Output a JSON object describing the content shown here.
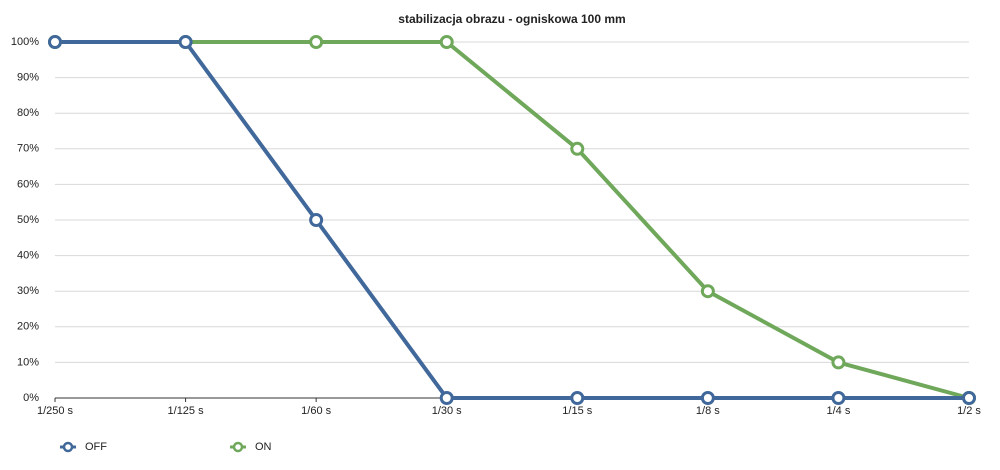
{
  "chart_data": {
    "type": "line",
    "title": "stabilizacja obrazu - ogniskowa 100 mm",
    "categories": [
      "1/250 s",
      "1/125 s",
      "1/60 s",
      "1/30 s",
      "1/15 s",
      "1/8 s",
      "1/4 s",
      "1/2 s"
    ],
    "series": [
      {
        "name": "ON",
        "color": "#6fa85a",
        "values": [
          100,
          100,
          100,
          100,
          70,
          30,
          10,
          0
        ]
      },
      {
        "name": "OFF",
        "color": "#41689a",
        "values": [
          100,
          100,
          50,
          0,
          0,
          0,
          0,
          0
        ]
      }
    ],
    "ylim": [
      0,
      100
    ],
    "yticks": [
      {
        "value": 0,
        "label": "0%"
      },
      {
        "value": 10,
        "label": "10%"
      },
      {
        "value": 20,
        "label": "20%"
      },
      {
        "value": 30,
        "label": "30%"
      },
      {
        "value": 40,
        "label": "40%"
      },
      {
        "value": 50,
        "label": "50%"
      },
      {
        "value": 60,
        "label": "60%"
      },
      {
        "value": 70,
        "label": "70%"
      },
      {
        "value": 80,
        "label": "80%"
      },
      {
        "value": 90,
        "label": "90%"
      },
      {
        "value": 100,
        "label": "100%"
      }
    ],
    "grid": true,
    "legend": "bottom-left"
  }
}
